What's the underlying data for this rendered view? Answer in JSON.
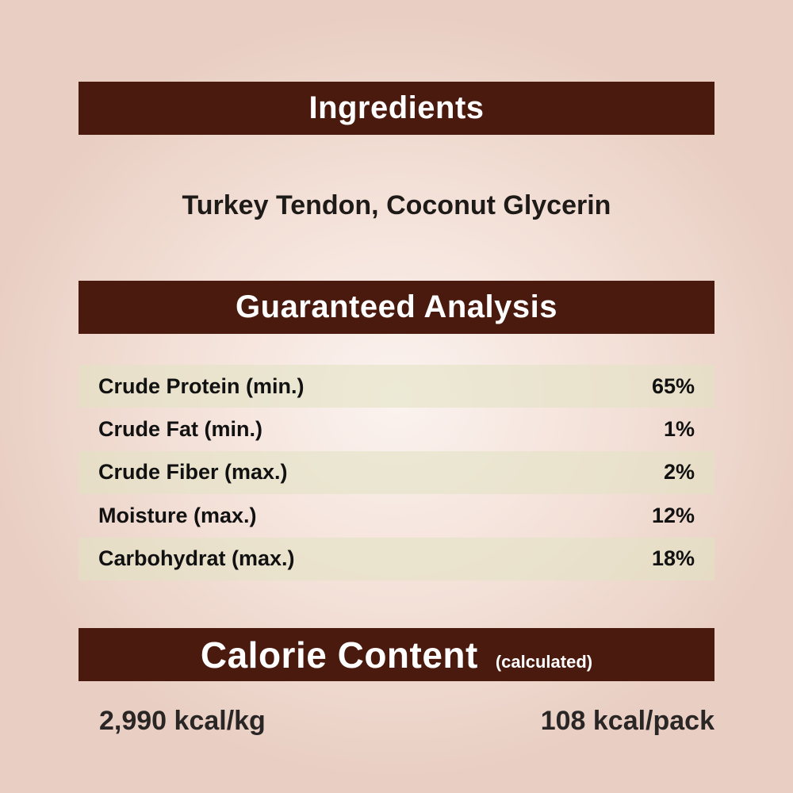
{
  "ingredients": {
    "title": "Ingredients",
    "text": "Turkey Tendon, Coconut Glycerin"
  },
  "analysis": {
    "title": "Guaranteed Analysis",
    "rows": [
      {
        "label": "Crude Protein (min.)",
        "value": "65%"
      },
      {
        "label": "Crude Fat (min.)",
        "value": "1%"
      },
      {
        "label": "Crude Fiber (max.)",
        "value": "2%"
      },
      {
        "label": "Moisture (max.)",
        "value": "12%"
      },
      {
        "label": "Carbohydrat (max.)",
        "value": "18%"
      }
    ]
  },
  "calorie": {
    "title": "Calorie Content",
    "note": "(calculated)",
    "per_kg": "2,990 kcal/kg",
    "per_pack": "108 kcal/pack"
  },
  "colors": {
    "banner": "#4a1a0f",
    "row_shade": "#e2e2c4",
    "background": "#ecd3c8"
  }
}
